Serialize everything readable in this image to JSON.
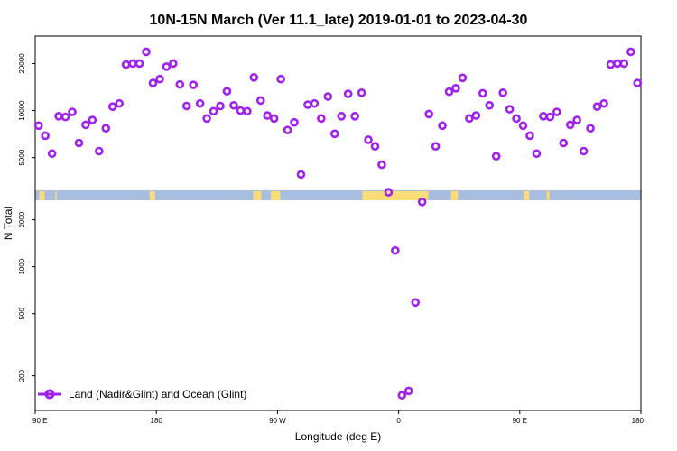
{
  "chart_data": {
    "type": "scatter",
    "title": "10N-15N March (Ver 11.1_late)   2019-01-01 to 2023-04-30",
    "xlabel": "Longitude (deg E)",
    "ylabel": "N Total",
    "y_scale": "log",
    "ylim": [
      120,
      30000
    ],
    "x_ticks": [
      {
        "value": 90,
        "label": "90 E"
      },
      {
        "value": 180,
        "label": "180"
      },
      {
        "value": 270,
        "label": "90 W"
      },
      {
        "value": 360,
        "label": "0"
      },
      {
        "value": 450,
        "label": "90 E"
      },
      {
        "value": 540,
        "label": "180"
      }
    ],
    "y_ticks": [
      {
        "value": 200,
        "label": "200"
      },
      {
        "value": 500,
        "label": "500"
      },
      {
        "value": 1000,
        "label": "1000"
      },
      {
        "value": 2000,
        "label": "2000"
      },
      {
        "value": 5000,
        "label": "5000"
      },
      {
        "value": 10000,
        "label": "10000"
      },
      {
        "value": 20000,
        "label": "20000"
      }
    ],
    "x_axis_note": "x values in degrees east of 0 E, continuing past 360 on the second cycle",
    "color": "#a020f0",
    "land_color": "#fadc78",
    "ocean_color": "#a8bee0",
    "legend_position": "bottom-left",
    "series": [
      {
        "name": "Land (Nadir&Glint) and Ocean (Glint)",
        "x": [
          92.5,
          97.5,
          102.5,
          107.5,
          112.5,
          117.5,
          122.5,
          127.5,
          132.5,
          137.5,
          142.5,
          147.5,
          152.5,
          157.5,
          162.5,
          167.5,
          172.5,
          177.5,
          182.5,
          187.5,
          192.5,
          197.5,
          202.5,
          207.5,
          212.5,
          217.5,
          222.5,
          227.5,
          232.5,
          237.5,
          242.5,
          247.5,
          252.5,
          257.5,
          262.5,
          267.5,
          272.5,
          277.5,
          282.5,
          287.5,
          292.5,
          297.5,
          302.5,
          307.5,
          312.5,
          317.5,
          322.5,
          327.5,
          332.5,
          337.5,
          342.5,
          347.5,
          352.5,
          357.5,
          362.5,
          367.5,
          372.5,
          377.5,
          382.5,
          387.5,
          392.5,
          397.5,
          402.5,
          407.5,
          412.5,
          417.5,
          422.5,
          427.5,
          432.5,
          437.5,
          442.5,
          447.5,
          452.5,
          457.5,
          462.5,
          467.5,
          472.5,
          477.5,
          482.5,
          487.5,
          492.5,
          497.5,
          502.5,
          507.5,
          512.5,
          517.5,
          522.5,
          527.5,
          532.5,
          537.5
        ],
        "y": [
          8000,
          6900,
          5300,
          9200,
          9100,
          9800,
          6200,
          8100,
          8700,
          5500,
          7700,
          10600,
          11100,
          19700,
          20000,
          20000,
          23800,
          15000,
          15900,
          19100,
          20000,
          14700,
          10700,
          14600,
          11100,
          8900,
          9900,
          10700,
          13300,
          10800,
          10000,
          9900,
          16300,
          11600,
          9300,
          8900,
          15900,
          7500,
          8400,
          3900,
          10900,
          11100,
          8900,
          12300,
          7100,
          9200,
          12800,
          9200,
          13000,
          6500,
          5900,
          4500,
          3000,
          1270,
          150,
          160,
          590,
          2600,
          9500,
          5900,
          8000,
          13200,
          13900,
          16200,
          8900,
          9300,
          12900,
          10800,
          5100,
          13000,
          10200,
          8900,
          8000,
          6900,
          5300,
          9200,
          9100,
          9800,
          6200,
          8100,
          8700,
          5500,
          7700,
          10600,
          11100,
          19700,
          20000,
          20000,
          23800,
          15000
        ]
      }
    ]
  }
}
